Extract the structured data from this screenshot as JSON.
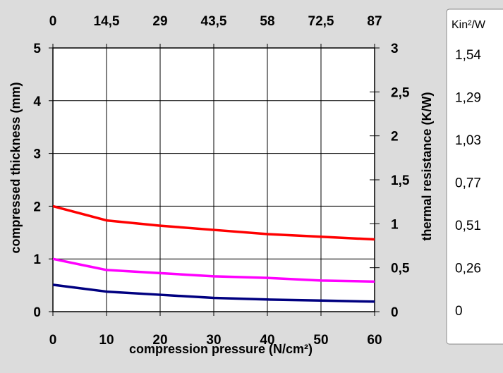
{
  "chart_data": {
    "type": "line",
    "xlabel": "compression pressure (N/cm²)",
    "ylabel": "compressed thickness (mm)",
    "y2label": "thermal resistance (K/W)",
    "xlim": [
      0,
      60
    ],
    "ylim": [
      0,
      5
    ],
    "y2lim": [
      0,
      3
    ],
    "grid": true,
    "x_ticks": [
      "0",
      "10",
      "20",
      "30",
      "40",
      "50",
      "60"
    ],
    "x_tick_values": [
      0,
      10,
      20,
      30,
      40,
      50,
      60
    ],
    "x_top_ticks": [
      "0",
      "14,5",
      "29",
      "43,5",
      "58",
      "72,5",
      "87"
    ],
    "y_ticks": [
      "0",
      "1",
      "2",
      "3",
      "4",
      "5"
    ],
    "y_tick_values": [
      0,
      1,
      2,
      3,
      4,
      5
    ],
    "y2_ticks": [
      "0",
      "0,5",
      "1",
      "1,5",
      "2",
      "2,5",
      "3"
    ],
    "y2_tick_values": [
      0,
      0.5,
      1,
      1.5,
      2,
      2.5,
      3
    ],
    "x": [
      0,
      10,
      20,
      30,
      40,
      50,
      60
    ],
    "series": [
      {
        "color": "#ff0000",
        "values": [
          2.0,
          1.73,
          1.63,
          1.55,
          1.47,
          1.42,
          1.37
        ]
      },
      {
        "color": "#ff00ff",
        "values": [
          1.0,
          0.79,
          0.73,
          0.67,
          0.64,
          0.59,
          0.57
        ]
      },
      {
        "color": "#000080",
        "values": [
          0.51,
          0.38,
          0.32,
          0.26,
          0.23,
          0.21,
          0.19
        ]
      }
    ],
    "side_scale": {
      "header": "Kin²/W",
      "values": [
        "1,54",
        "1,29",
        "1,03",
        "0,77",
        "0,51",
        "0,26",
        "0"
      ]
    }
  }
}
